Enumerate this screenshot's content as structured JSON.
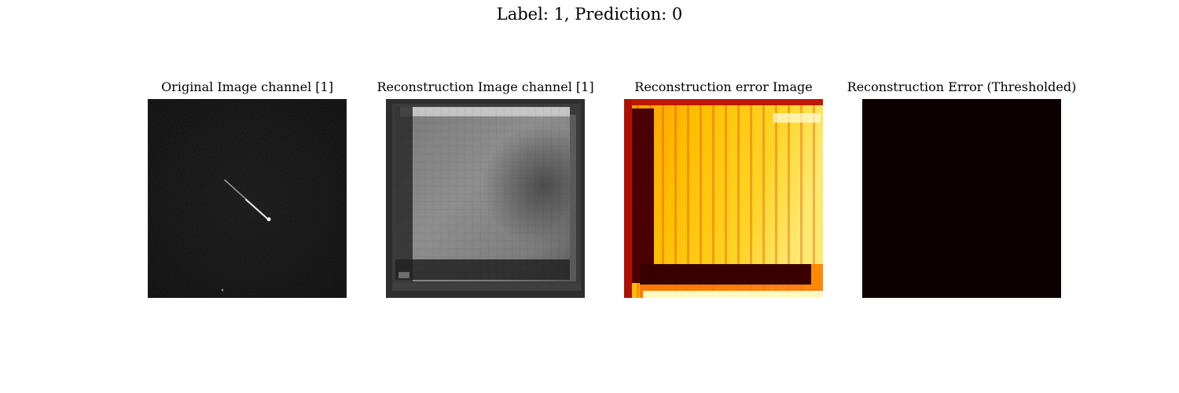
{
  "figure": {
    "suptitle": "Label: 1, Prediction: 0"
  },
  "panels": [
    {
      "title": "Original Image channel [1]",
      "colormap": "gray"
    },
    {
      "title": "Reconstruction Image channel [1]",
      "colormap": "gray"
    },
    {
      "title": "Reconstruction error Image",
      "colormap": "hot"
    },
    {
      "title": "Reconstruction Error (Thresholded)",
      "colormap": "hot",
      "color": "#0d0000"
    }
  ]
}
